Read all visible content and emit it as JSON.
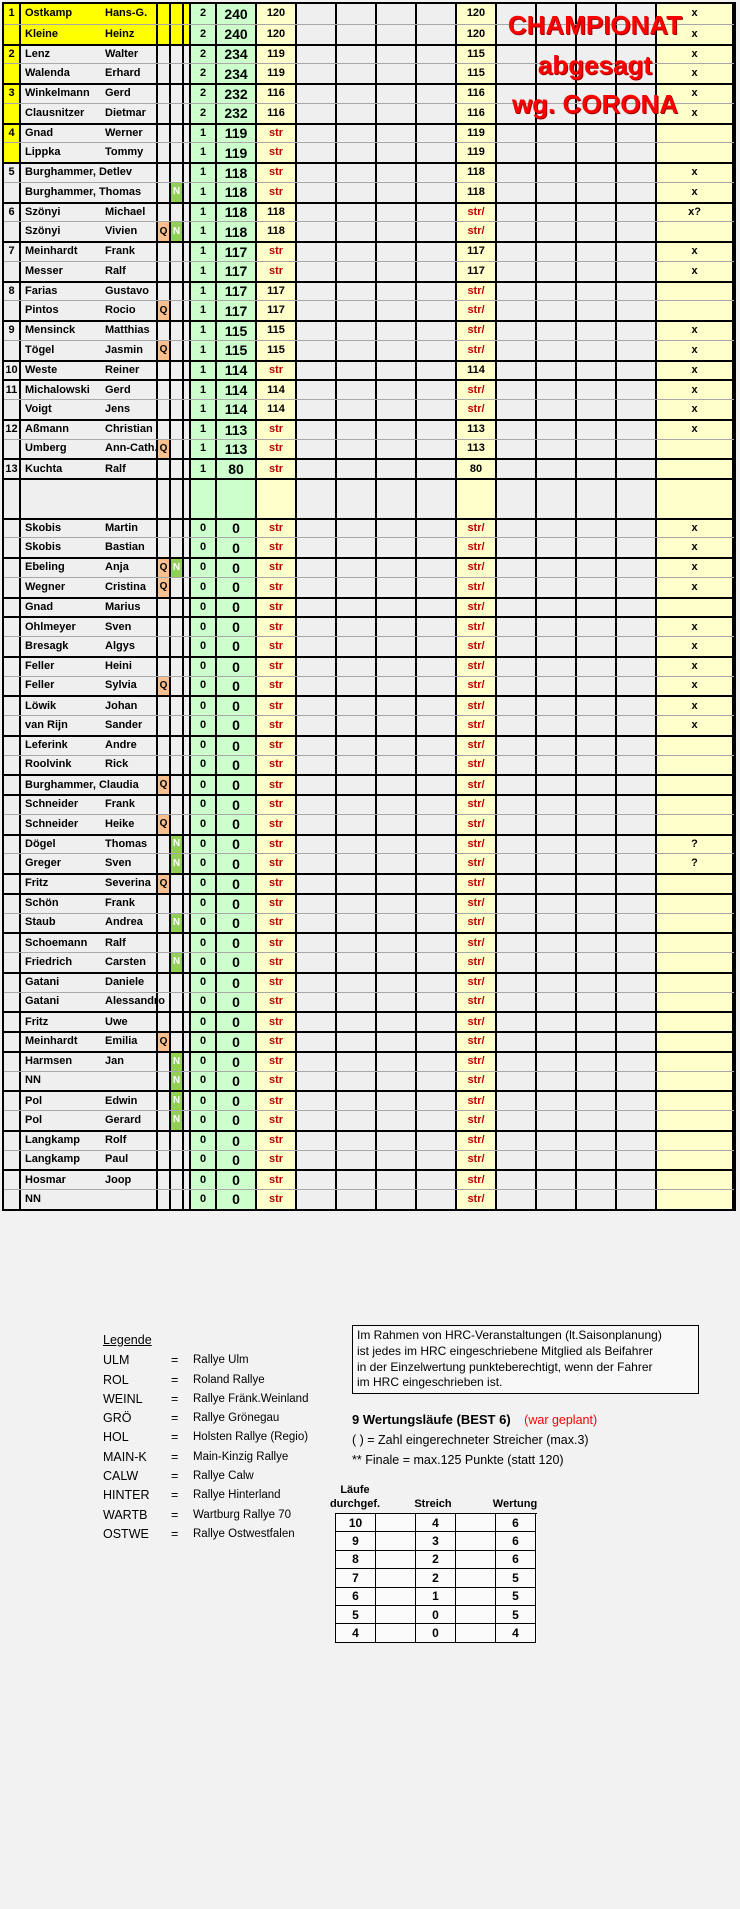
{
  "overlay": {
    "lines": [
      "CHAMPIONAT",
      "abgesagt",
      "wg. CORONA"
    ],
    "color": "#ff0000"
  },
  "palette": {
    "highlight_yellow": "#ffff00",
    "points_green": "#ccffcc",
    "value_yellow": "#ffffcc",
    "q_marker_orange": "#fabf8f",
    "n_marker_green": "#92d050",
    "str_red": "#c00000"
  },
  "standings": {
    "rows": [
      {
        "rank": "1",
        "last": "Ostkamp",
        "first": "Hans-G.",
        "q": "",
        "n": "",
        "cnt": "2",
        "score": "240",
        "v1": "120",
        "v2": "120",
        "x": "x",
        "hl": "full",
        "gs": true
      },
      {
        "rank": "",
        "last": "Kleine",
        "first": "Heinz",
        "q": "",
        "n": "",
        "cnt": "2",
        "score": "240",
        "v1": "120",
        "v2": "120",
        "x": "x",
        "hl": "full"
      },
      {
        "rank": "2",
        "last": "Lenz",
        "first": "Walter",
        "q": "",
        "n": "",
        "cnt": "2",
        "score": "234",
        "v1": "119",
        "v2": "115",
        "x": "x",
        "hl": "rank",
        "gs": true
      },
      {
        "rank": "",
        "last": "Walenda",
        "first": "Erhard",
        "q": "",
        "n": "",
        "cnt": "2",
        "score": "234",
        "v1": "119",
        "v2": "115",
        "x": "x",
        "hl": "rank"
      },
      {
        "rank": "3",
        "last": "Winkelmann",
        "first": "Gerd",
        "q": "",
        "n": "",
        "cnt": "2",
        "score": "232",
        "v1": "116",
        "v2": "116",
        "x": "x",
        "hl": "rank",
        "gs": true
      },
      {
        "rank": "",
        "last": "Clausnitzer",
        "first": "Dietmar",
        "q": "",
        "n": "",
        "cnt": "2",
        "score": "232",
        "v1": "116",
        "v2": "116",
        "x": "x",
        "hl": "rank"
      },
      {
        "rank": "4",
        "last": "Gnad",
        "first": "Werner",
        "q": "",
        "n": "",
        "cnt": "1",
        "score": "119",
        "v1": "str",
        "v2": "119",
        "x": "",
        "hl": "rank",
        "gs": true
      },
      {
        "rank": "",
        "last": "Lippka",
        "first": "Tommy",
        "q": "",
        "n": "",
        "cnt": "1",
        "score": "119",
        "v1": "str",
        "v2": "119",
        "x": "",
        "hl": "rank"
      },
      {
        "rank": "5",
        "last": "Burghammer, Detlev",
        "first": "",
        "q": "",
        "n": "",
        "cnt": "1",
        "score": "118",
        "v1": "str",
        "v2": "118",
        "x": "x",
        "gs": true
      },
      {
        "rank": "",
        "last": "Burghammer, Thomas",
        "first": "",
        "q": "",
        "n": "N",
        "cnt": "1",
        "score": "118",
        "v1": "str",
        "v2": "118",
        "x": "x"
      },
      {
        "rank": "6",
        "last": "Szönyi",
        "first": "Michael",
        "q": "",
        "n": "",
        "cnt": "1",
        "score": "118",
        "v1": "118",
        "v2": "str/",
        "x": "x?",
        "gs": true
      },
      {
        "rank": "",
        "last": "Szönyi",
        "first": "Vivien",
        "q": "Q",
        "n": "N",
        "cnt": "1",
        "score": "118",
        "v1": "118",
        "v2": "str/",
        "x": ""
      },
      {
        "rank": "7",
        "last": "Meinhardt",
        "first": "Frank",
        "q": "",
        "n": "",
        "cnt": "1",
        "score": "117",
        "v1": "str",
        "v2": "117",
        "x": "x",
        "gs": true
      },
      {
        "rank": "",
        "last": "Messer",
        "first": "Ralf",
        "q": "",
        "n": "",
        "cnt": "1",
        "score": "117",
        "v1": "str",
        "v2": "117",
        "x": "x"
      },
      {
        "rank": "8",
        "last": "Farias",
        "first": "Gustavo",
        "q": "",
        "n": "",
        "cnt": "1",
        "score": "117",
        "v1": "117",
        "v2": "str/",
        "x": "",
        "gs": true
      },
      {
        "rank": "",
        "last": "Pintos",
        "first": "Rocio",
        "q": "Q",
        "n": "",
        "cnt": "1",
        "score": "117",
        "v1": "117",
        "v2": "str/",
        "x": ""
      },
      {
        "rank": "9",
        "last": "Mensinck",
        "first": "Matthias",
        "q": "",
        "n": "",
        "cnt": "1",
        "score": "115",
        "v1": "115",
        "v2": "str/",
        "x": "x",
        "gs": true
      },
      {
        "rank": "",
        "last": "Tögel",
        "first": "Jasmin",
        "q": "Q",
        "n": "",
        "cnt": "1",
        "score": "115",
        "v1": "115",
        "v2": "str/",
        "x": "x"
      },
      {
        "rank": "10",
        "last": "Weste",
        "first": "Reiner",
        "q": "",
        "n": "",
        "cnt": "1",
        "score": "114",
        "v1": "str",
        "v2": "114",
        "x": "x",
        "gs": true
      },
      {
        "rank": "11",
        "last": "Michalowski",
        "first": "Gerd",
        "q": "",
        "n": "",
        "cnt": "1",
        "score": "114",
        "v1": "114",
        "v2": "str/",
        "x": "x",
        "gs": true
      },
      {
        "rank": "",
        "last": "Voigt",
        "first": "Jens",
        "q": "",
        "n": "",
        "cnt": "1",
        "score": "114",
        "v1": "114",
        "v2": "str/",
        "x": "x"
      },
      {
        "rank": "12",
        "last": "Aßmann",
        "first": "Christian",
        "q": "",
        "n": "",
        "cnt": "1",
        "score": "113",
        "v1": "str",
        "v2": "113",
        "x": "x",
        "gs": true
      },
      {
        "rank": "",
        "last": "Umberg",
        "first": "Ann-Cath.",
        "q": "Q",
        "n": "",
        "cnt": "1",
        "score": "113",
        "v1": "str",
        "v2": "113",
        "x": ""
      },
      {
        "rank": "13",
        "last": "Kuchta",
        "first": "Ralf",
        "q": "",
        "n": "",
        "cnt": "1",
        "score": "80",
        "v1": "str",
        "v2": "80",
        "x": "",
        "gs": true
      },
      {
        "rank": "",
        "last": "",
        "first": "",
        "q": "",
        "n": "",
        "cnt": "",
        "score": "",
        "v1": "",
        "v2": "",
        "x": "",
        "blank": true,
        "gs": true
      },
      {
        "rank": "",
        "last": "Skobis",
        "first": "Martin",
        "q": "",
        "n": "",
        "cnt": "0",
        "score": "0",
        "v1": "str",
        "v2": "str/",
        "x": "x",
        "gs": true
      },
      {
        "rank": "",
        "last": "Skobis",
        "first": "Bastian",
        "q": "",
        "n": "",
        "cnt": "0",
        "score": "0",
        "v1": "str",
        "v2": "str/",
        "x": "x"
      },
      {
        "rank": "",
        "last": "Ebeling",
        "first": "Anja",
        "q": "Q",
        "n": "N",
        "cnt": "0",
        "score": "0",
        "v1": "str",
        "v2": "str/",
        "x": "x",
        "gs": true
      },
      {
        "rank": "",
        "last": "Wegner",
        "first": "Cristina",
        "q": "Q",
        "n": "",
        "cnt": "0",
        "score": "0",
        "v1": "str",
        "v2": "str/",
        "x": "x"
      },
      {
        "rank": "",
        "last": "Gnad",
        "first": "Marius",
        "q": "",
        "n": "",
        "cnt": "0",
        "score": "0",
        "v1": "str",
        "v2": "str/",
        "x": "",
        "gs": true
      },
      {
        "rank": "",
        "last": "Ohlmeyer",
        "first": "Sven",
        "q": "",
        "n": "",
        "cnt": "0",
        "score": "0",
        "v1": "str",
        "v2": "str/",
        "x": "x",
        "gs": true
      },
      {
        "rank": "",
        "last": "Bresagk",
        "first": "Algys",
        "q": "",
        "n": "",
        "cnt": "0",
        "score": "0",
        "v1": "str",
        "v2": "str/",
        "x": "x"
      },
      {
        "rank": "",
        "last": "Feller",
        "first": "Heini",
        "q": "",
        "n": "",
        "cnt": "0",
        "score": "0",
        "v1": "str",
        "v2": "str/",
        "x": "x",
        "gs": true
      },
      {
        "rank": "",
        "last": "Feller",
        "first": "Sylvia",
        "q": "Q",
        "n": "",
        "cnt": "0",
        "score": "0",
        "v1": "str",
        "v2": "str/",
        "x": "x"
      },
      {
        "rank": "",
        "last": "Löwik",
        "first": "Johan",
        "q": "",
        "n": "",
        "cnt": "0",
        "score": "0",
        "v1": "str",
        "v2": "str/",
        "x": "x",
        "gs": true
      },
      {
        "rank": "",
        "last": "van Rijn",
        "first": "Sander",
        "q": "",
        "n": "",
        "cnt": "0",
        "score": "0",
        "v1": "str",
        "v2": "str/",
        "x": "x"
      },
      {
        "rank": "",
        "last": "Leferink",
        "first": "Andre",
        "q": "",
        "n": "",
        "cnt": "0",
        "score": "0",
        "v1": "str",
        "v2": "str/",
        "x": "",
        "gs": true
      },
      {
        "rank": "",
        "last": "Roolvink",
        "first": "Rick",
        "q": "",
        "n": "",
        "cnt": "0",
        "score": "0",
        "v1": "str",
        "v2": "str/",
        "x": ""
      },
      {
        "rank": "",
        "last": "Burghammer, Claudia",
        "first": "",
        "q": "Q",
        "n": "",
        "cnt": "0",
        "score": "0",
        "v1": "str",
        "v2": "str/",
        "x": "",
        "gs": true
      },
      {
        "rank": "",
        "last": "Schneider",
        "first": "Frank",
        "q": "",
        "n": "",
        "cnt": "0",
        "score": "0",
        "v1": "str",
        "v2": "str/",
        "x": "",
        "gs": true
      },
      {
        "rank": "",
        "last": "Schneider",
        "first": "Heike",
        "q": "Q",
        "n": "",
        "cnt": "0",
        "score": "0",
        "v1": "str",
        "v2": "str/",
        "x": ""
      },
      {
        "rank": "",
        "last": "Dögel",
        "first": "Thomas",
        "q": "",
        "n": "N",
        "cnt": "0",
        "score": "0",
        "v1": "str",
        "v2": "str/",
        "x": "?",
        "gs": true
      },
      {
        "rank": "",
        "last": "Greger",
        "first": "Sven",
        "q": "",
        "n": "N",
        "cnt": "0",
        "score": "0",
        "v1": "str",
        "v2": "str/",
        "x": "?"
      },
      {
        "rank": "",
        "last": "Fritz",
        "first": "Severina",
        "q": "Q",
        "n": "",
        "cnt": "0",
        "score": "0",
        "v1": "str",
        "v2": "str/",
        "x": "",
        "gs": true
      },
      {
        "rank": "",
        "last": "Schön",
        "first": "Frank",
        "q": "",
        "n": "",
        "cnt": "0",
        "score": "0",
        "v1": "str",
        "v2": "str/",
        "x": "",
        "gs": true
      },
      {
        "rank": "",
        "last": "Staub",
        "first": "Andrea",
        "q": "",
        "n": "N",
        "cnt": "0",
        "score": "0",
        "v1": "str",
        "v2": "str/",
        "x": ""
      },
      {
        "rank": "",
        "last": "Schoemann",
        "first": "Ralf",
        "q": "",
        "n": "",
        "cnt": "0",
        "score": "0",
        "v1": "str",
        "v2": "str/",
        "x": "",
        "gs": true
      },
      {
        "rank": "",
        "last": "Friedrich",
        "first": "Carsten",
        "q": "",
        "n": "N",
        "cnt": "0",
        "score": "0",
        "v1": "str",
        "v2": "str/",
        "x": ""
      },
      {
        "rank": "",
        "last": "Gatani",
        "first": "Daniele",
        "q": "",
        "n": "",
        "cnt": "0",
        "score": "0",
        "v1": "str",
        "v2": "str/",
        "x": "",
        "gs": true
      },
      {
        "rank": "",
        "last": "Gatani",
        "first": "Alessandro",
        "q": "",
        "n": "",
        "cnt": "0",
        "score": "0",
        "v1": "str",
        "v2": "str/",
        "x": ""
      },
      {
        "rank": "",
        "last": "Fritz",
        "first": "Uwe",
        "q": "",
        "n": "",
        "cnt": "0",
        "score": "0",
        "v1": "str",
        "v2": "str/",
        "x": "",
        "gs": true
      },
      {
        "rank": "",
        "last": "Meinhardt",
        "first": "Emilia",
        "q": "Q",
        "n": "",
        "cnt": "0",
        "score": "0",
        "v1": "str",
        "v2": "str/",
        "x": "",
        "gs": true
      },
      {
        "rank": "",
        "last": "Harmsen",
        "first": "Jan",
        "q": "",
        "n": "N",
        "cnt": "0",
        "score": "0",
        "v1": "str",
        "v2": "str/",
        "x": "",
        "gs": true
      },
      {
        "rank": "",
        "last": "NN",
        "first": "",
        "q": "",
        "n": "N",
        "cnt": "0",
        "score": "0",
        "v1": "str",
        "v2": "str/",
        "x": ""
      },
      {
        "rank": "",
        "last": "Pol",
        "first": "Edwin",
        "q": "",
        "n": "N",
        "cnt": "0",
        "score": "0",
        "v1": "str",
        "v2": "str/",
        "x": "",
        "gs": true
      },
      {
        "rank": "",
        "last": "Pol",
        "first": "Gerard",
        "q": "",
        "n": "N",
        "cnt": "0",
        "score": "0",
        "v1": "str",
        "v2": "str/",
        "x": ""
      },
      {
        "rank": "",
        "last": "Langkamp",
        "first": "Rolf",
        "q": "",
        "n": "",
        "cnt": "0",
        "score": "0",
        "v1": "str",
        "v2": "str/",
        "x": "",
        "gs": true
      },
      {
        "rank": "",
        "last": "Langkamp",
        "first": "Paul",
        "q": "",
        "n": "",
        "cnt": "0",
        "score": "0",
        "v1": "str",
        "v2": "str/",
        "x": ""
      },
      {
        "rank": "",
        "last": "Hosmar",
        "first": "Joop",
        "q": "",
        "n": "",
        "cnt": "0",
        "score": "0",
        "v1": "str",
        "v2": "str/",
        "x": "",
        "gs": true
      },
      {
        "rank": "",
        "last": "NN",
        "first": "",
        "q": "",
        "n": "",
        "cnt": "0",
        "score": "0",
        "v1": "str",
        "v2": "str/",
        "x": ""
      }
    ]
  },
  "legend": {
    "title": "Legende",
    "items": [
      {
        "code": "ULM",
        "eq": "=",
        "name": "Rallye Ulm"
      },
      {
        "code": "ROL",
        "eq": "=",
        "name": "Roland Rallye"
      },
      {
        "code": "WEINL",
        "eq": "=",
        "name": "Rallye Fränk.Weinland"
      },
      {
        "code": "GRÖ",
        "eq": "=",
        "name": "Rallye Grönegau"
      },
      {
        "code": "HOL",
        "eq": "=",
        "name": "Holsten Rallye (Regio)"
      },
      {
        "code": "MAIN-K",
        "eq": "=",
        "name": "Main-Kinzig Rallye"
      },
      {
        "code": "CALW",
        "eq": "=",
        "name": "Rallye Calw"
      },
      {
        "code": "HINTER",
        "eq": "=",
        "name": "Rallye Hinterland"
      },
      {
        "code": "WARTB",
        "eq": "=",
        "name": "Wartburg Rallye 70"
      },
      {
        "code": "OSTWE",
        "eq": "=",
        "name": "Rallye Ostwestfalen"
      }
    ]
  },
  "info_box": {
    "lines": [
      "Im Rahmen von HRC-Veranstaltungen (lt.Saisonplanung)",
      "ist jedes im HRC eingeschriebene Mitglied als Beifahrer",
      "in der Einzelwertung punkteberechtigt, wenn der Fahrer",
      "im HRC eingeschrieben ist."
    ]
  },
  "notes": {
    "heading": "9 Wertungsläufe (BEST 6)",
    "heading_note": "(war geplant)",
    "line1": "(  ) = Zahl eingerechneter Streicher (max.3)",
    "line2": "** Finale = max.125 Punkte (statt 120)"
  },
  "scoring_table": {
    "headers": {
      "col1a": "Läufe",
      "col1b": "durchgef.",
      "col2": "Streich",
      "col3": "Wertung"
    },
    "rows": [
      [
        "10",
        "4",
        "6"
      ],
      [
        "9",
        "3",
        "6"
      ],
      [
        "8",
        "2",
        "6"
      ],
      [
        "7",
        "2",
        "5"
      ],
      [
        "6",
        "1",
        "5"
      ],
      [
        "5",
        "0",
        "5"
      ],
      [
        "4",
        "0",
        "4"
      ]
    ]
  }
}
